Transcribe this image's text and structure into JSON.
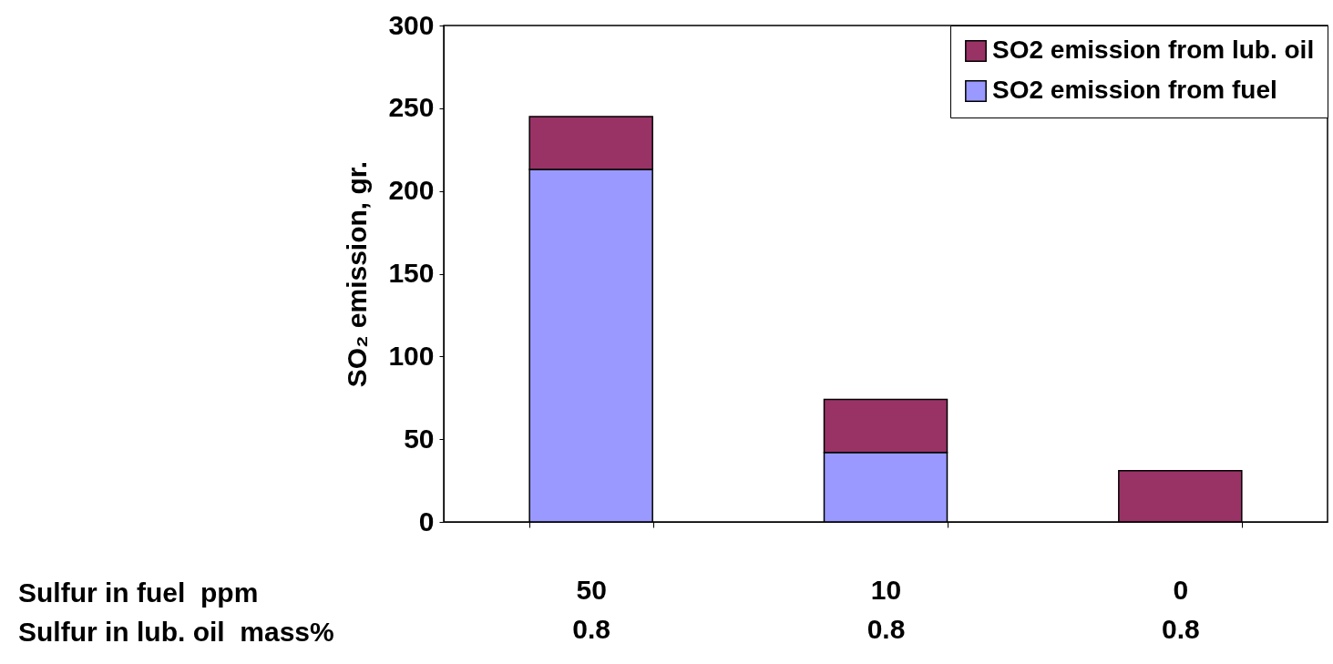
{
  "chart_data": {
    "type": "bar",
    "stacked": true,
    "ylabel": "SO₂ emission, gr.",
    "categories": [
      "50\n0.8",
      "10\n0.8",
      "0\n0.8"
    ],
    "series": [
      {
        "name": "SO2 emission from fuel",
        "color": "#9999ff",
        "values": [
          213,
          42,
          0
        ]
      },
      {
        "name": "SO2 emission from lub. oil",
        "color": "#993366",
        "values": [
          32,
          32,
          31
        ]
      }
    ],
    "ylim": [
      0,
      300
    ],
    "yticks": [
      0,
      50,
      100,
      150,
      200,
      250,
      300
    ],
    "grid": false,
    "legend": "top right",
    "annotations": [
      "Sulfur in fuel  ppm",
      "Sulfur in lub. oil  mass%"
    ]
  }
}
